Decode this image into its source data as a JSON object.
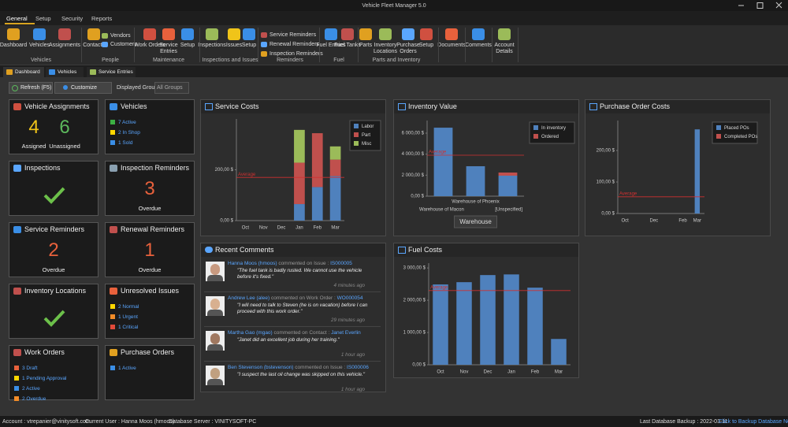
{
  "window": {
    "title": "Vehicle Fleet Manager 5.0"
  },
  "menu_tabs": [
    "General",
    "Setup",
    "Security",
    "Reports"
  ],
  "ribbon": {
    "groups": [
      {
        "label": "Vehicles",
        "buttons": [
          "Dashboard",
          "Vehicles",
          "Assignments"
        ]
      },
      {
        "label": "People",
        "buttons": [
          "Contacts",
          "Vendors",
          "Customers"
        ]
      },
      {
        "label": "Maintenance",
        "buttons": [
          "Work Orders",
          "Service Entries",
          "Setup"
        ]
      },
      {
        "label": "Inspections and Issues",
        "buttons": [
          "Inspections",
          "Issues",
          "Setup"
        ]
      },
      {
        "label": "Reminders",
        "buttons": [
          "Service Reminders",
          "Renewal Reminders",
          "Inspection Reminders"
        ]
      },
      {
        "label": "Fuel",
        "buttons": [
          "Fuel Entries",
          "Fuel Tanks"
        ]
      },
      {
        "label": "Parts and Inventory",
        "buttons": [
          "Parts",
          "Inventory Locations",
          "Purchase Orders",
          "Setup"
        ]
      },
      {
        "buttons": [
          "Documents",
          "Comments",
          "Account Details"
        ]
      }
    ]
  },
  "document_tabs": [
    "Dashboard",
    "Vehicles",
    "Service Entries"
  ],
  "toolbar": {
    "refresh": "Refresh (F5)",
    "customize": "Customize",
    "group_label": "Displayed Group",
    "group_value": "All Groups"
  },
  "tiles": [
    {
      "title": "Vehicle Assignments",
      "counts": [
        {
          "value": 4,
          "label": "Assigned",
          "color": "#f0c419"
        },
        {
          "value": 6,
          "label": "Unassigned",
          "color": "#5cb85c"
        }
      ]
    },
    {
      "title": "Vehicles",
      "items": [
        {
          "text": "7 Active",
          "color": "#3cb043"
        },
        {
          "text": "2 In Shop",
          "color": "#ffd700"
        },
        {
          "text": "1 Sold",
          "color": "#3a8ee6"
        }
      ]
    },
    {
      "title": "Inspections"
    },
    {
      "title": "Inspection Reminders",
      "count": 3,
      "label": "Overdue",
      "color": "#e8613c"
    },
    {
      "title": "Service Reminders",
      "count": 2,
      "label": "Overdue",
      "color": "#e8613c"
    },
    {
      "title": "Renewal Reminders",
      "count": 1,
      "label": "Overdue",
      "color": "#e8613c"
    },
    {
      "title": "Inventory Locations"
    },
    {
      "title": "Unresolved Issues",
      "items": [
        {
          "text": "2 Normal",
          "color": "#ffd700"
        },
        {
          "text": "1 Urgent",
          "color": "#f28c28"
        },
        {
          "text": "1 Critical",
          "color": "#e04a3a"
        }
      ]
    },
    {
      "title": "Work Orders",
      "items": [
        {
          "text": "3 Draft",
          "color": "#e8613c"
        },
        {
          "text": "1 Pending Approval",
          "color": "#ffd700"
        },
        {
          "text": "2 Active",
          "color": "#3a8ee6"
        },
        {
          "text": "2 Overdue",
          "color": "#f28c28"
        }
      ]
    },
    {
      "title": "Purchase Orders",
      "items": [
        {
          "text": "1 Active",
          "color": "#3a8ee6"
        }
      ]
    }
  ],
  "charts": [
    {
      "type": "bar",
      "title": "Service Costs",
      "stacked": true,
      "legend": "top-right",
      "categories": [
        "Oct",
        "Nov",
        "Dec",
        "Jan",
        "Feb",
        "Mar"
      ],
      "series": [
        {
          "name": "Labor",
          "color": "#4f81bd",
          "values": [
            0,
            0,
            0,
            65,
            132,
            175
          ]
        },
        {
          "name": "Part",
          "color": "#c0504d",
          "values": [
            0,
            0,
            0,
            163,
            212,
            65
          ]
        },
        {
          "name": "Misc",
          "color": "#9bbb59",
          "values": [
            0,
            0,
            0,
            129,
            0,
            52
          ]
        }
      ],
      "ylim": [
        0,
        400
      ],
      "yticks": [
        {
          "value": 0,
          "label": "0,00 $"
        },
        {
          "value": 200,
          "label": "200,00 $"
        }
      ],
      "average": {
        "value": 170,
        "label": "Average"
      }
    },
    {
      "type": "bar",
      "title": "Inventory Value",
      "stacked": true,
      "legend": "top-right",
      "xlabel": "Warehouse",
      "categories": [
        "Warehouse of Macon",
        "Warehouse of Phoenix",
        "[Unspecified]"
      ],
      "series": [
        {
          "name": "In inventory",
          "color": "#4f81bd",
          "values": [
            6520,
            2850,
            1950
          ]
        },
        {
          "name": "Ordered",
          "color": "#c0504d",
          "values": [
            0,
            0,
            300
          ]
        }
      ],
      "ylim": [
        0,
        7200
      ],
      "yticks": [
        {
          "value": 0,
          "label": "0,00 $"
        },
        {
          "value": 2000,
          "label": "2 000,00 $"
        },
        {
          "value": 4000,
          "label": "4 000,00 $"
        },
        {
          "value": 6000,
          "label": "6 000,00 $"
        }
      ],
      "average": {
        "value": 3900,
        "label": "Average"
      }
    },
    {
      "type": "bar",
      "title": "Purchase Order Costs",
      "stacked": true,
      "legend": "top-right",
      "categories": [
        "Oct",
        null,
        "Dec",
        null,
        "Feb",
        "Mar"
      ],
      "series": [
        {
          "name": "Placed POs",
          "color": "#4f81bd",
          "values": [
            0,
            0,
            0,
            0,
            0,
            267
          ]
        },
        {
          "name": "Completed POs",
          "color": "#c0504d",
          "values": [
            0,
            0,
            0,
            0,
            0,
            0
          ]
        }
      ],
      "ylim": [
        0,
        295
      ],
      "yticks": [
        {
          "value": 0,
          "label": "0,00 $"
        },
        {
          "value": 100,
          "label": "100,00 $"
        },
        {
          "value": 200,
          "label": "200,00 $"
        }
      ],
      "average": {
        "value": 53,
        "label": "Average"
      }
    },
    {
      "type": "bar",
      "title": "Fuel Costs",
      "categories": [
        "Oct",
        "Nov",
        "Dec",
        "Jan",
        "Feb",
        "Mar"
      ],
      "values": [
        2490,
        2560,
        2780,
        2800,
        2390,
        800
      ],
      "color": "#4f81bd",
      "ylim": [
        0,
        3150
      ],
      "yticks": [
        {
          "value": 0,
          "label": "0,00 $"
        },
        {
          "value": 1000,
          "label": "1 000,00 $"
        },
        {
          "value": 2000,
          "label": "2 000,00 $"
        },
        {
          "value": 3000,
          "label": "3 000,00 $"
        }
      ],
      "average": {
        "value": 2300,
        "label": "Average"
      }
    }
  ],
  "comments": {
    "title": "Recent Comments",
    "items": [
      {
        "user": "Hanna Moos (hmoos)",
        "action": "commented on Issue :",
        "ref": "IS000005",
        "text": "\"The fuel tank is badly rusted. We cannot use the vehicle before it's fixed.\"",
        "time": "4 minutes ago"
      },
      {
        "user": "Andrew Lee (alee)",
        "action": "commented on Work Order :",
        "ref": "WO000054",
        "text": "\"I will need to talk to Steven (he is on vacation) before I can proceed with this work order.\"",
        "time": "29 minutes ago"
      },
      {
        "user": "Martha Gao (mgao)",
        "action": "commented on Contact :",
        "ref": "Janet Everlin",
        "text": "\"Janet did an excellent job during her training.\"",
        "time": "1 hour ago"
      },
      {
        "user": "Ben Stevenson (bstevenson)",
        "action": "commented on Issue :",
        "ref": "IS000006",
        "text": "\"I suspect the last oil change was skipped on this vehicle.\"",
        "time": "1 hour ago"
      }
    ]
  },
  "status_bar": {
    "account": "Account : vtrepanier@vinitysoft.com",
    "user": "Current User : Hanna Moos (hmoos)",
    "server": "Database Server : VINITYSOFT-PC",
    "backup": "Last Database Backup : 2022-03-11",
    "backup_link": "Click to Backup Database Now!"
  }
}
